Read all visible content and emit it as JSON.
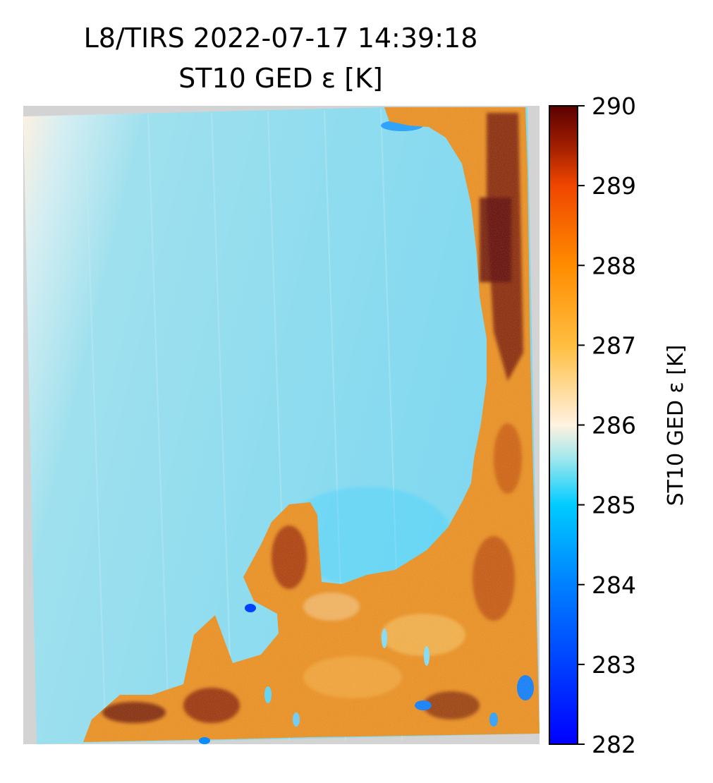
{
  "chart_data": {
    "type": "heatmap",
    "title": "L8/TIRS 2022-07-17 14:39:18",
    "subtitle": "ST10 GED ε [K]",
    "colorbar": {
      "label": "ST10 GED ε [K]",
      "vmin": 282,
      "vmax": 290,
      "ticks": [
        282,
        283,
        284,
        285,
        286,
        287,
        288,
        289,
        290
      ],
      "tick_labels": [
        "282",
        "283",
        "284",
        "285",
        "286",
        "287",
        "288",
        "289",
        "290"
      ],
      "colormap": [
        {
          "value": 282,
          "color": "#0000ff"
        },
        {
          "value": 284,
          "color": "#0080ff"
        },
        {
          "value": 285,
          "color": "#00ccff"
        },
        {
          "value": 285.6,
          "color": "#a6e8ec"
        },
        {
          "value": 286,
          "color": "#fff2e0"
        },
        {
          "value": 287,
          "color": "#ffbe40"
        },
        {
          "value": 288,
          "color": "#ff8c00"
        },
        {
          "value": 289,
          "color": "#f04600"
        },
        {
          "value": 289.5,
          "color": "#a01e00"
        },
        {
          "value": 290,
          "color": "#5a0000"
        }
      ]
    },
    "regions": [
      {
        "name": "water",
        "approx_value": 285.3
      },
      {
        "name": "land",
        "approx_value": 288.2
      },
      {
        "name": "coast",
        "approx_value": 286.0
      },
      {
        "name": "no-data",
        "color": "#d3d3d3"
      }
    ],
    "axes_visible": false
  }
}
